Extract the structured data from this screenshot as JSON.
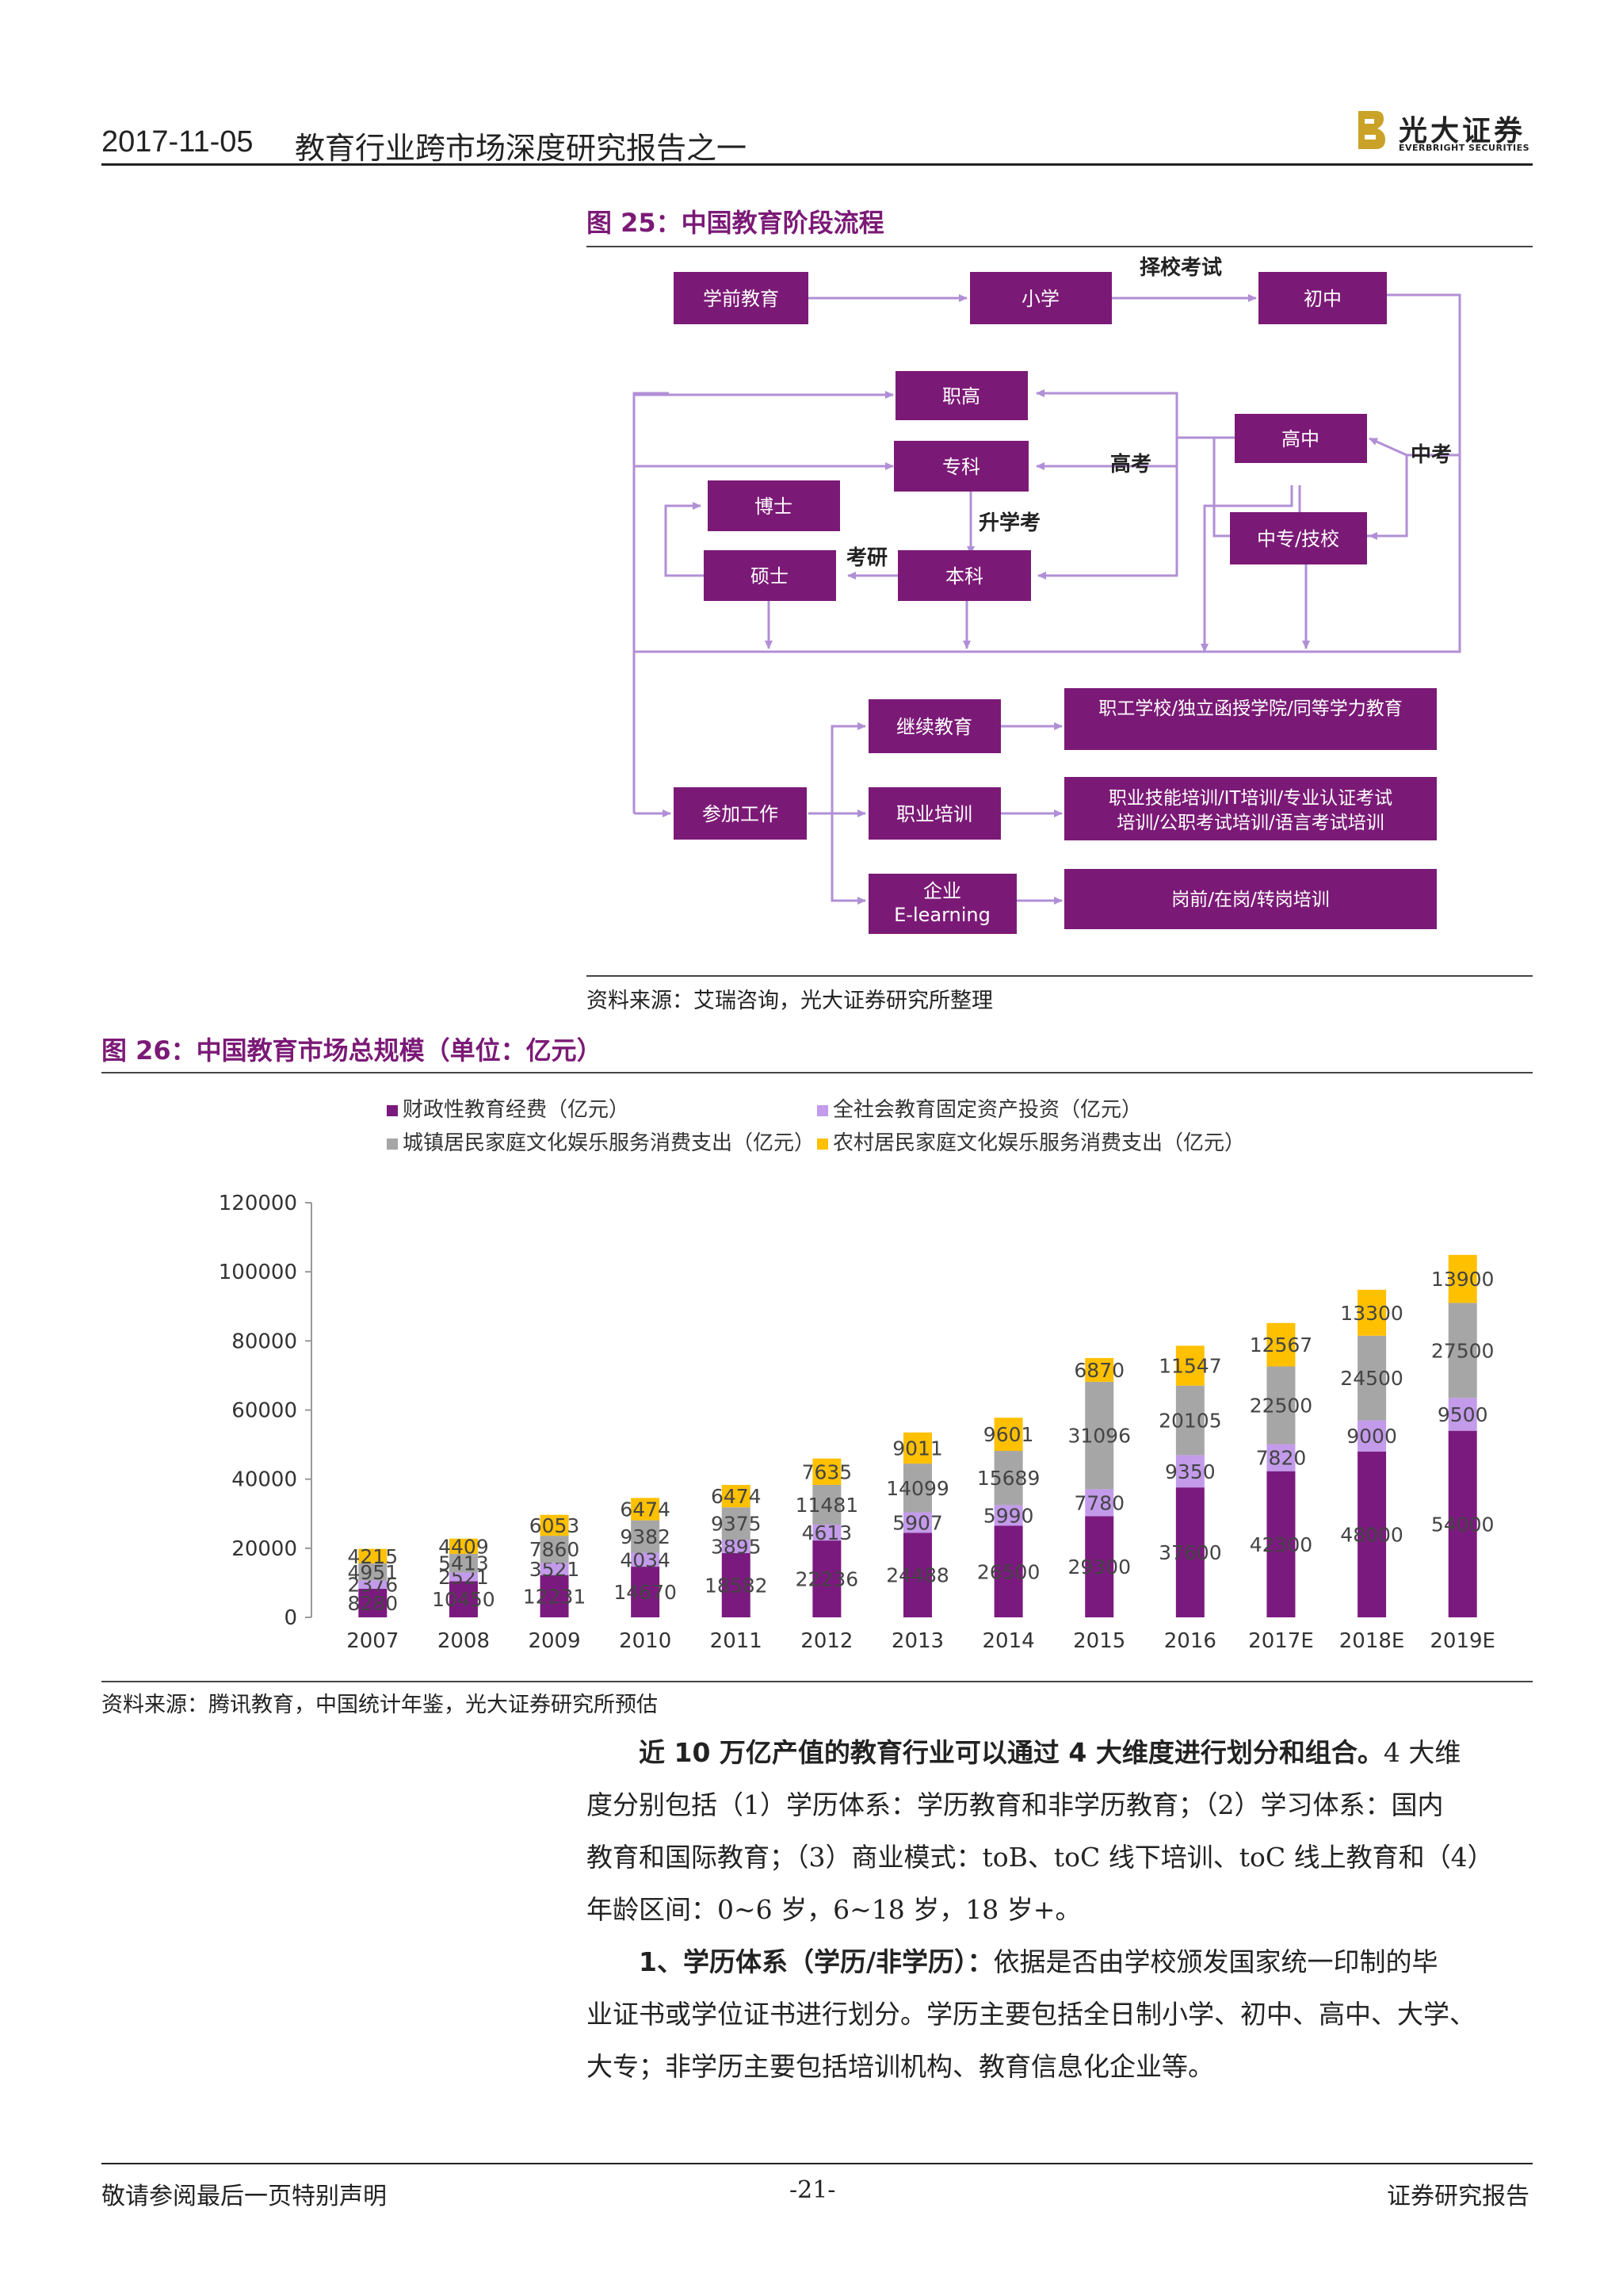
{
  "header": {
    "date": "2017-11-05",
    "title": "教育行业跨市场深度研究报告之一",
    "logo_cn": "光大证券",
    "logo_en": "EVERBRIGHT SECURITIES",
    "logo_color": "#c9a227"
  },
  "figure25": {
    "title": "图 25：中国教育阶段流程",
    "source": "资料来源：艾瑞咨询，光大证券研究所整理",
    "box_color": "#7b1a76",
    "arrow_color": "#b18fd6",
    "boxes": {
      "preschool": "学前教育",
      "primary": "小学",
      "junior": "初中",
      "vocational_high": "职高",
      "college": "专科",
      "doctor": "博士",
      "master": "硕士",
      "undergrad": "本科",
      "senior": "高中",
      "tech_school": "中专/技校",
      "work": "参加工作",
      "continuing": "继续教育",
      "vocational_training": "职业培训",
      "enterprise_1": "企业",
      "enterprise_2": "E-learning",
      "out1": "职工学校/独立函授学院/同等学力教育",
      "out2_line1": "职业技能培训/IT培训/专业认证考试",
      "out2_line2": "培训/公职考试培训/语言考试培训",
      "out3": "岗前/在岗/转岗培训"
    },
    "labels": {
      "school_exam": "择校考试",
      "gaokao": "高考",
      "zhongkao": "中考",
      "upgrade": "升学考",
      "postgrad": "考研"
    }
  },
  "figure26": {
    "title": "图 26：中国教育市场总规模（单位：亿元）",
    "source": "资料来源：腾讯教育，中国统计年鉴，光大证券研究所预估"
  },
  "chart_data": {
    "type": "bar",
    "stacked": true,
    "categories": [
      "2007",
      "2008",
      "2009",
      "2010",
      "2011",
      "2012",
      "2013",
      "2014",
      "2015",
      "2016",
      "2017E",
      "2018E",
      "2019E"
    ],
    "ylim": [
      0,
      120000
    ],
    "yticks": [
      "0",
      "20000",
      "40000",
      "60000",
      "80000",
      "100000",
      "120000"
    ],
    "legend_position": "top",
    "series": [
      {
        "name": "财政性教育经费（亿元）",
        "color": "#7b1a7e",
        "values": [
          8280,
          10450,
          12231,
          14670,
          18582,
          22236,
          24488,
          26500,
          29300,
          37600,
          42300,
          48000,
          54000
        ]
      },
      {
        "name": "全社会教育固定资产投资（亿元）",
        "color": "#c39bea",
        "values": [
          2376,
          2521,
          3521,
          4034,
          3895,
          4613,
          5907,
          5990,
          7780,
          9350,
          7820,
          9000,
          9500
        ]
      },
      {
        "name": "城镇居民家庭文化娱乐服务消费支出（亿元）",
        "color": "#a6a6a6",
        "values": [
          4951,
          5413,
          7860,
          9382,
          9375,
          11481,
          14099,
          15689,
          31096,
          20105,
          22500,
          24500,
          27500
        ]
      },
      {
        "name": "农村居民家庭文化娱乐服务消费支出（亿元）",
        "color": "#ffc000",
        "values": [
          4215,
          4409,
          6053,
          6474,
          6474,
          7635,
          9011,
          9601,
          6870,
          11547,
          12567,
          13300,
          13900
        ]
      }
    ]
  },
  "text": {
    "p1_bold": "近 10 万亿产值的教育行业可以通过 4 大维度进行划分和组合。",
    "p1_rest_line1": "4 大维",
    "p1_line2": "度分别包括（1）学历体系：学历教育和非学历教育；（2）学习体系：国内",
    "p1_line3": "教育和国际教育；（3）商业模式：toB、toC 线下培训、toC 线上教育和（4）",
    "p1_line4": "年龄区间：0~6 岁，6~18 岁，18 岁+。",
    "p2_bold": "1、学历体系（学历/非学历）：",
    "p2_rest_line1": "依据是否由学校颁发国家统一印制的毕",
    "p2_line2": "业证书或学位证书进行划分。学历主要包括全日制小学、初中、高中、大学、",
    "p2_line3": "大专；非学历主要包括培训机构、教育信息化企业等。"
  },
  "footer": {
    "left": "敬请参阅最后一页特别声明",
    "page": "-21-",
    "right": "证券研究报告"
  }
}
